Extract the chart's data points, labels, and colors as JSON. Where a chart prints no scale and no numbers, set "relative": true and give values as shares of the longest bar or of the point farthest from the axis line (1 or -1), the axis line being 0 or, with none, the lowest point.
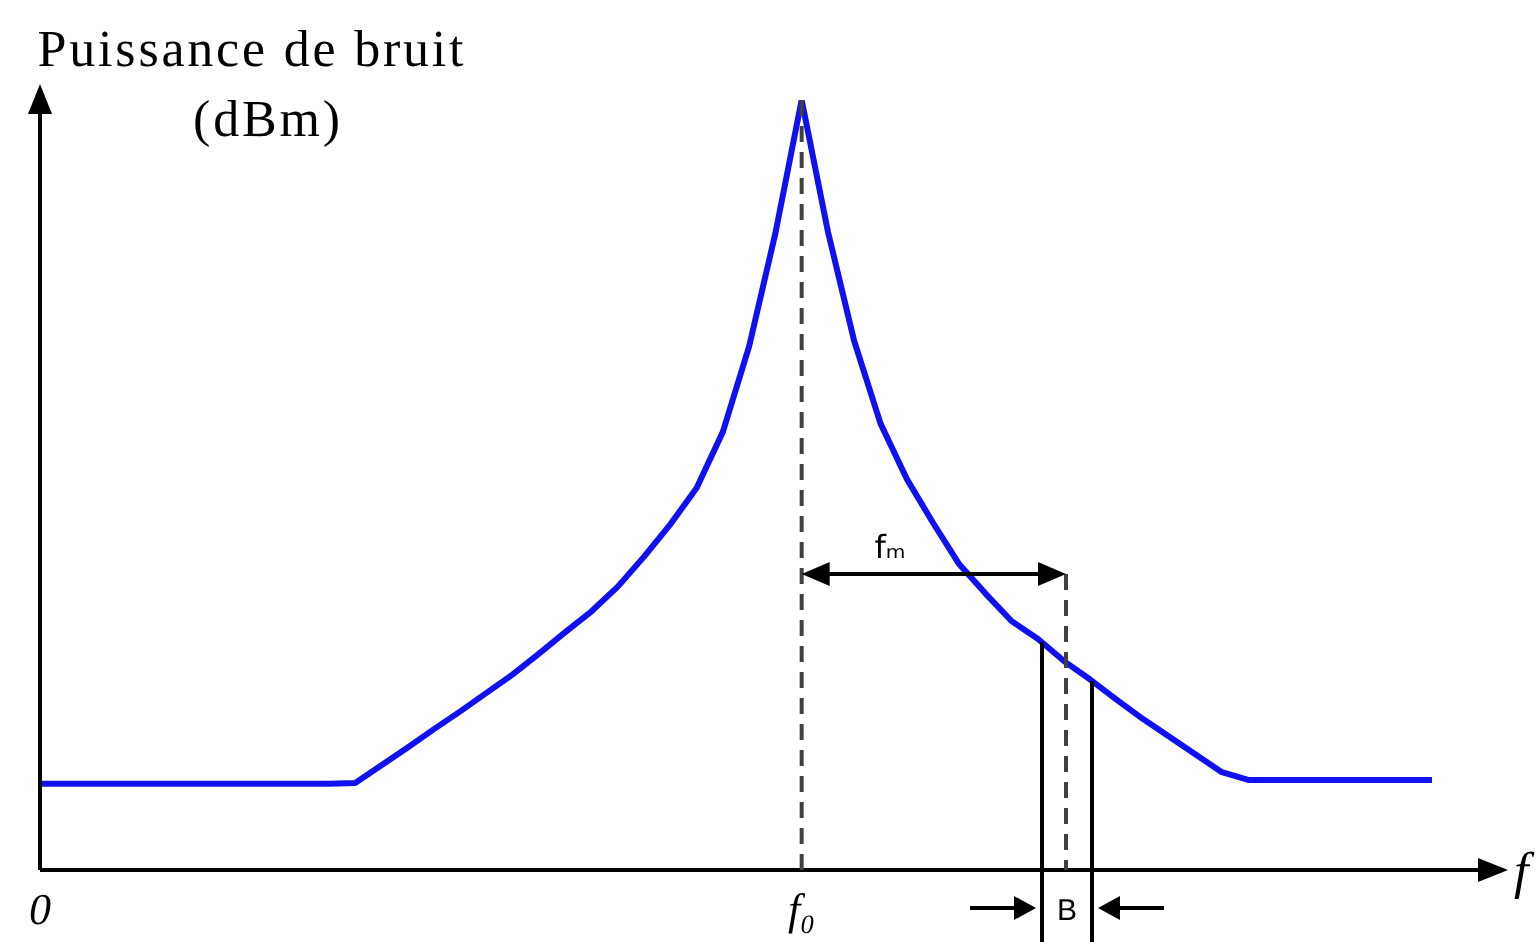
{
  "chart_data": {
    "type": "line",
    "relative": true,
    "ylabel": "Puissance de bruit\n(dBm)",
    "xlabel": "f",
    "categories": [
      "0",
      null,
      null,
      null,
      null,
      null,
      null,
      null,
      null,
      null,
      null,
      null,
      null,
      null,
      null,
      null,
      null,
      null,
      null,
      null,
      null,
      null,
      null,
      null,
      null,
      null,
      null,
      null,
      null,
      "f₀",
      null,
      null,
      null,
      null,
      null,
      null,
      null,
      null,
      null,
      null,
      null,
      null,
      null,
      null,
      null,
      null,
      null,
      null,
      null,
      null,
      null,
      null,
      null,
      null
    ],
    "series": [
      {
        "color": "#1010f0",
        "values": [
          0.112,
          0.112,
          0.112,
          0.112,
          0.112,
          0.112,
          0.112,
          0.112,
          0.112,
          0.112,
          0.112,
          0.112,
          0.113,
          0.136,
          0.159,
          0.183,
          0.206,
          0.23,
          0.254,
          0.281,
          0.309,
          0.336,
          0.368,
          0.407,
          0.449,
          0.496,
          0.569,
          0.68,
          0.827,
          1,
          0.829,
          0.687,
          0.58,
          0.508,
          0.451,
          0.397,
          0.359,
          0.323,
          0.3,
          0.271,
          0.247,
          0.221,
          0.196,
          0.173,
          0.15,
          0.127,
          0.117,
          0.117,
          0.117,
          0.117,
          0.117,
          0.117,
          0.117,
          0.117
        ]
      }
    ],
    "ref_lines": [
      {
        "axis": "x",
        "value": "f₀",
        "line_style": "dashed",
        "color": "#404040"
      }
    ],
    "annotations": [
      "fₘ",
      "B"
    ],
    "marker": "none",
    "line_style": "solid"
  }
}
